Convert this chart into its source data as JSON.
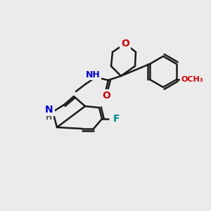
{
  "bg_color": "#ebebeb",
  "bond_color": "#1a1a1a",
  "bond_width": 1.8,
  "atom_colors": {
    "O": "#cc0000",
    "N": "#0000cc",
    "F": "#008888",
    "H": "#555555",
    "C": "#1a1a1a"
  }
}
